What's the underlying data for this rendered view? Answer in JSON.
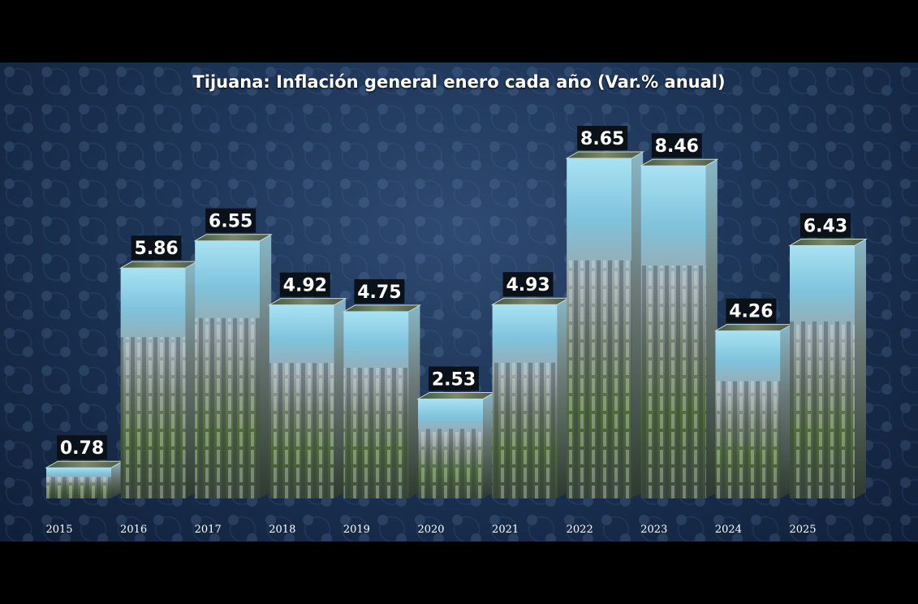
{
  "title": "Tijuana: Inflación general enero cada año (Var.% anual)",
  "chart_data": {
    "type": "bar",
    "title": "Tijuana: Inflación general enero cada año (Var.% anual)",
    "categories": [
      "2015",
      "2016",
      "2017",
      "2018",
      "2019",
      "2020",
      "2021",
      "2022",
      "2023",
      "2024",
      "2025"
    ],
    "values": [
      0.78,
      5.86,
      6.55,
      4.92,
      4.75,
      2.53,
      4.93,
      8.65,
      8.46,
      4.26,
      6.43
    ],
    "value_labels": [
      "0.78",
      "5.86",
      "6.55",
      "4.92",
      "4.75",
      "2.53",
      "4.93",
      "8.65",
      "8.46",
      "4.26",
      "6.43"
    ],
    "xlabel": "",
    "ylabel": "",
    "ylim": [
      0,
      9.5
    ],
    "grid": false,
    "legend": "none",
    "bar_style": "3d-photo-fill",
    "colors": {
      "panel": "#1d3557",
      "sky": "#8fd3ea",
      "label_bg": "#0b1118",
      "text": "#ffffff"
    }
  }
}
